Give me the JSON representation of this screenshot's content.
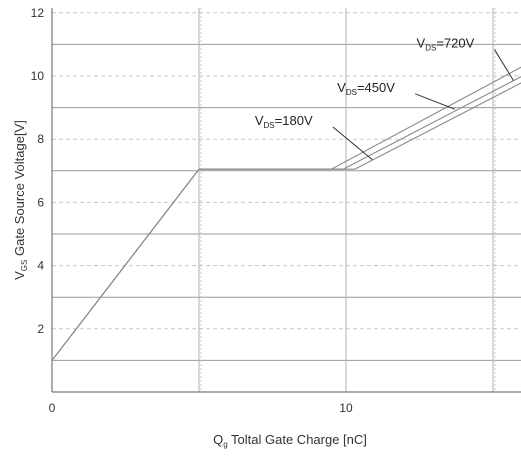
{
  "chart_data": {
    "type": "line",
    "title": "",
    "xlabel": {
      "main": "Q",
      "sub": "g",
      "rest": " Toltal Gate Charge [nC]"
    },
    "ylabel": {
      "main": "V",
      "sub": "GS",
      "rest": " Gate Source Voltage[V]"
    },
    "xlim": [
      0,
      16
    ],
    "ylim": [
      0,
      13
    ],
    "x_ticks": [
      0,
      10
    ],
    "y_ticks": [
      2,
      4,
      6,
      8,
      10,
      12
    ],
    "x_gridlines_solid": [
      5,
      10,
      15
    ],
    "x_gridlines_dotted": [
      5,
      15
    ],
    "y_gridlines_solid": [
      1,
      3,
      5,
      7,
      9,
      11
    ],
    "y_gridlines_dashed": [
      2,
      4,
      6,
      8,
      10,
      12
    ],
    "series": [
      {
        "x": [
          0,
          5,
          10.3,
          16
        ],
        "y": [
          1,
          7.05,
          7.05,
          9.8
        ]
      },
      {
        "x": [
          0,
          5,
          9.9,
          16
        ],
        "y": [
          1,
          7.05,
          7.05,
          10.0
        ]
      },
      {
        "x": [
          0,
          5,
          9.5,
          16
        ],
        "y": [
          1,
          7.05,
          7.05,
          10.3
        ]
      }
    ],
    "annotations": [
      {
        "main": "V",
        "sub": "DS",
        "rest": "=180V",
        "label_x": 6.9,
        "label_y": 8.45,
        "arrow_to": [
          10.9,
          7.35
        ]
      },
      {
        "main": "V",
        "sub": "DS",
        "rest": "=450V",
        "label_x": 9.7,
        "label_y": 9.5,
        "arrow_to": [
          13.7,
          8.95
        ]
      },
      {
        "main": "V",
        "sub": "DS",
        "rest": "=720V",
        "label_x": 12.4,
        "label_y": 10.9,
        "arrow_to": [
          15.7,
          9.85
        ]
      }
    ],
    "grid": true,
    "legend": "none",
    "colors": {
      "line": "#8a8a8a",
      "grid": "#c8c8c8",
      "axis": "#777777",
      "text": "#333333"
    }
  }
}
